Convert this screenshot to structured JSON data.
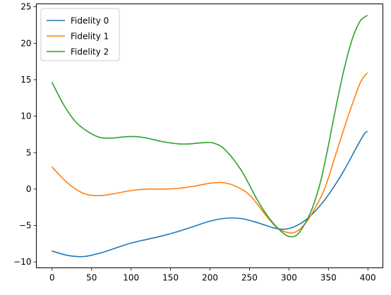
{
  "chart_data": {
    "type": "line",
    "title": "",
    "xlabel": "",
    "ylabel": "",
    "xlim": [
      -20,
      419
    ],
    "ylim": [
      -10.8,
      25.4
    ],
    "x_ticks": [
      0,
      50,
      100,
      150,
      200,
      250,
      300,
      350,
      400
    ],
    "y_ticks": [
      -10,
      -5,
      0,
      5,
      10,
      15,
      20,
      25
    ],
    "grid": false,
    "legend": {
      "placement": "upper-left"
    },
    "series": [
      {
        "name": "Fidelity 0",
        "color": "#1f77b4",
        "points": [
          [
            0,
            -8.5
          ],
          [
            20,
            -9.1
          ],
          [
            40,
            -9.25
          ],
          [
            60,
            -8.8
          ],
          [
            80,
            -8.1
          ],
          [
            100,
            -7.4
          ],
          [
            120,
            -6.9
          ],
          [
            140,
            -6.4
          ],
          [
            160,
            -5.8
          ],
          [
            180,
            -5.1
          ],
          [
            200,
            -4.4
          ],
          [
            220,
            -4.0
          ],
          [
            240,
            -4.05
          ],
          [
            260,
            -4.6
          ],
          [
            280,
            -5.3
          ],
          [
            295,
            -5.5
          ],
          [
            310,
            -5.0
          ],
          [
            325,
            -3.9
          ],
          [
            340,
            -2.2
          ],
          [
            355,
            0.0
          ],
          [
            370,
            2.6
          ],
          [
            385,
            5.6
          ],
          [
            395,
            7.5
          ],
          [
            399,
            7.9
          ]
        ]
      },
      {
        "name": "Fidelity 1",
        "color": "#ff7f0e",
        "points": [
          [
            0,
            3.0
          ],
          [
            20,
            0.8
          ],
          [
            40,
            -0.6
          ],
          [
            60,
            -0.9
          ],
          [
            80,
            -0.6
          ],
          [
            100,
            -0.2
          ],
          [
            120,
            0.0
          ],
          [
            140,
            0.0
          ],
          [
            160,
            0.1
          ],
          [
            180,
            0.4
          ],
          [
            200,
            0.8
          ],
          [
            215,
            0.9
          ],
          [
            230,
            0.5
          ],
          [
            250,
            -0.8
          ],
          [
            270,
            -3.5
          ],
          [
            285,
            -5.3
          ],
          [
            300,
            -6.0
          ],
          [
            310,
            -5.8
          ],
          [
            320,
            -4.8
          ],
          [
            330,
            -3.2
          ],
          [
            345,
            0.0
          ],
          [
            360,
            5.0
          ],
          [
            375,
            10.0
          ],
          [
            390,
            14.5
          ],
          [
            399,
            15.9
          ]
        ]
      },
      {
        "name": "Fidelity 2",
        "color": "#2ca02c",
        "points": [
          [
            0,
            14.6
          ],
          [
            15,
            11.5
          ],
          [
            30,
            9.2
          ],
          [
            45,
            7.9
          ],
          [
            60,
            7.1
          ],
          [
            75,
            7.0
          ],
          [
            90,
            7.15
          ],
          [
            105,
            7.2
          ],
          [
            120,
            7.0
          ],
          [
            140,
            6.5
          ],
          [
            160,
            6.2
          ],
          [
            175,
            6.2
          ],
          [
            190,
            6.35
          ],
          [
            205,
            6.3
          ],
          [
            220,
            5.3
          ],
          [
            240,
            2.5
          ],
          [
            260,
            -1.5
          ],
          [
            275,
            -4.0
          ],
          [
            290,
            -5.8
          ],
          [
            300,
            -6.5
          ],
          [
            310,
            -6.3
          ],
          [
            320,
            -4.8
          ],
          [
            330,
            -2.5
          ],
          [
            340,
            1.0
          ],
          [
            350,
            6.0
          ],
          [
            360,
            11.5
          ],
          [
            370,
            16.5
          ],
          [
            380,
            20.5
          ],
          [
            390,
            23.0
          ],
          [
            399,
            23.8
          ]
        ]
      }
    ]
  }
}
